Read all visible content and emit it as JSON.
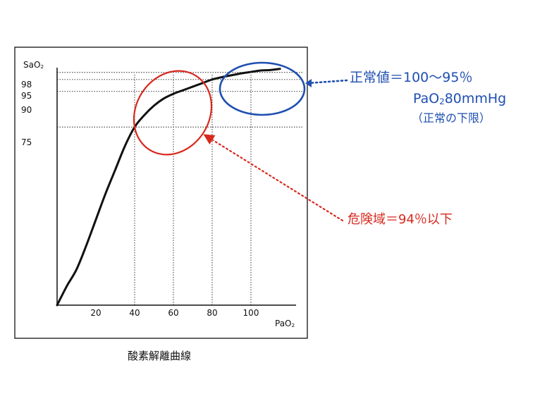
{
  "chart_data": {
    "type": "line",
    "title": "",
    "caption": "酸素解離曲線",
    "ylabel": {
      "main": "SaO",
      "sub": "2"
    },
    "xlabel": {
      "main": "PaO",
      "sub": "2"
    },
    "xlim": [
      0,
      120
    ],
    "ylim": [
      0,
      100
    ],
    "x_ticks": [
      20,
      40,
      60,
      80,
      100
    ],
    "y_ticks": [
      75,
      90,
      95,
      98
    ],
    "x": [
      0,
      5,
      10,
      15,
      20,
      25,
      30,
      35,
      40,
      45,
      50,
      55,
      60,
      65,
      70,
      75,
      80,
      85,
      90,
      95,
      100,
      105,
      110,
      115
    ],
    "y": [
      0,
      8,
      15,
      25,
      36,
      47,
      57,
      67,
      75,
      80,
      84,
      87,
      89,
      90.5,
      92,
      93.5,
      95,
      96,
      96.8,
      97.6,
      98.2,
      98.8,
      99,
      99.5
    ],
    "reference_lines": {
      "horizontal": [
        75,
        90,
        95,
        98
      ],
      "vertical": [
        40,
        60,
        80,
        100
      ]
    }
  },
  "annotations": {
    "normal": {
      "line1": "正常値＝100～95％",
      "line2_main": "PaO",
      "line2_sub": "2",
      "line2_rest": "80mmHg",
      "line3": "（正常の下限）",
      "color": "#1f4fb0"
    },
    "danger": {
      "text": "危険域＝94％以下",
      "color": "#d8281e"
    }
  }
}
